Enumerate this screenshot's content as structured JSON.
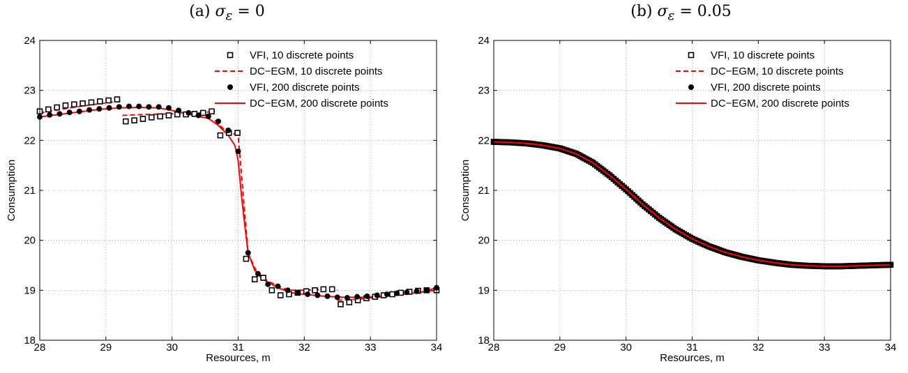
{
  "chart_data": [
    {
      "type": "line",
      "title": "(a) σ_ε = 0",
      "title_parts": {
        "label": "(a)",
        "symbol": "σ",
        "subscript": "ε",
        "rest": " = 0"
      },
      "xlabel": "Resources, m",
      "ylabel": "Consumption",
      "xlim": [
        28,
        34
      ],
      "ylim": [
        18,
        24
      ],
      "xticks": [
        "28",
        "29",
        "30",
        "31",
        "32",
        "33",
        "34"
      ],
      "yticks": [
        "18",
        "19",
        "20",
        "21",
        "22",
        "23",
        "24"
      ],
      "grid": true,
      "legend_position": "top-right",
      "series": [
        {
          "name": "VFI, 10 discrete points",
          "style": "square-marker",
          "color": "#000000",
          "x": [
            28.0,
            28.13,
            28.26,
            28.39,
            28.52,
            28.65,
            28.78,
            28.91,
            29.04,
            29.17,
            29.3,
            29.43,
            29.56,
            29.69,
            29.82,
            29.95,
            30.08,
            30.21,
            30.34,
            30.47,
            30.6,
            30.73,
            30.86,
            30.99,
            31.12,
            31.25,
            31.38,
            31.51,
            31.64,
            31.77,
            31.9,
            32.03,
            32.16,
            32.29,
            32.42,
            32.55,
            32.68,
            32.81,
            32.94,
            33.07,
            33.2,
            33.33,
            33.46,
            33.59,
            33.72,
            33.85,
            34.0
          ],
          "y": [
            22.58,
            22.62,
            22.66,
            22.7,
            22.72,
            22.74,
            22.76,
            22.78,
            22.8,
            22.82,
            22.38,
            22.4,
            22.43,
            22.46,
            22.48,
            22.5,
            22.52,
            22.52,
            22.53,
            22.55,
            22.58,
            22.1,
            22.15,
            22.15,
            19.63,
            19.22,
            19.25,
            19.0,
            18.9,
            18.92,
            18.95,
            18.98,
            19.0,
            19.02,
            19.02,
            18.72,
            18.76,
            18.8,
            18.84,
            18.87,
            18.9,
            18.92,
            18.95,
            18.97,
            18.99,
            19.0,
            19.0
          ]
        },
        {
          "name": "DC−EGM, 10 discrete points",
          "style": "dashed-line",
          "color": "#ff0000",
          "segments": [
            {
              "x": [
                28.0,
                28.5,
                29.0,
                29.25
              ],
              "y": [
                22.55,
                22.66,
                22.75,
                22.8
              ]
            },
            {
              "x": [
                29.25,
                29.6,
                30.0,
                30.4,
                30.65
              ],
              "y": [
                22.5,
                22.52,
                22.53,
                22.55,
                22.58
              ]
            },
            {
              "x": [
                30.65,
                30.8,
                31.0,
                31.15,
                31.3,
                31.5,
                31.75,
                32.0,
                32.3,
                32.5
              ],
              "y": [
                22.4,
                22.2,
                22.1,
                19.75,
                19.3,
                19.15,
                19.0,
                19.0,
                19.02,
                19.0
              ]
            },
            {
              "x": [
                32.5,
                32.8,
                33.1,
                33.4,
                33.7,
                34.0
              ],
              "y": [
                18.8,
                18.82,
                18.86,
                18.9,
                18.95,
                19.0
              ]
            }
          ]
        },
        {
          "name": "VFI, 200 discrete points",
          "style": "dot-marker",
          "color": "#000000",
          "x": [
            28.0,
            28.15,
            28.3,
            28.45,
            28.6,
            28.75,
            28.9,
            29.05,
            29.2,
            29.35,
            29.5,
            29.65,
            29.8,
            29.95,
            30.1,
            30.25,
            30.4,
            30.55,
            30.7,
            30.85,
            31.0,
            31.15,
            31.3,
            31.45,
            31.6,
            31.75,
            31.9,
            32.05,
            32.2,
            32.35,
            32.5,
            32.65,
            32.8,
            32.95,
            33.1,
            33.25,
            33.4,
            33.55,
            33.7,
            33.85,
            34.0
          ],
          "y": [
            22.47,
            22.51,
            22.53,
            22.56,
            22.58,
            22.61,
            22.63,
            22.65,
            22.67,
            22.68,
            22.68,
            22.67,
            22.67,
            22.65,
            22.6,
            22.55,
            22.5,
            22.48,
            22.38,
            22.2,
            21.78,
            19.75,
            19.33,
            19.12,
            19.08,
            19.0,
            18.95,
            18.92,
            18.9,
            18.88,
            18.86,
            18.85,
            18.87,
            18.88,
            18.9,
            18.92,
            18.94,
            18.96,
            18.98,
            19.0,
            19.05
          ]
        },
        {
          "name": "DC−EGM, 200 discrete points",
          "style": "solid-line",
          "color": "#ff0000",
          "x": [
            28.0,
            28.3,
            28.6,
            28.9,
            29.2,
            29.5,
            29.8,
            30.0,
            30.2,
            30.4,
            30.55,
            30.7,
            30.85,
            30.95,
            31.0,
            31.05,
            31.1,
            31.15,
            31.25,
            31.4,
            31.6,
            31.8,
            32.0,
            32.3,
            32.6,
            32.9,
            33.2,
            33.5,
            33.8,
            34.0
          ],
          "y": [
            22.47,
            22.52,
            22.57,
            22.62,
            22.65,
            22.66,
            22.65,
            22.6,
            22.54,
            22.48,
            22.44,
            22.3,
            22.1,
            21.9,
            21.6,
            20.9,
            20.3,
            19.75,
            19.4,
            19.2,
            19.05,
            18.95,
            18.92,
            18.88,
            18.86,
            18.86,
            18.88,
            18.92,
            18.97,
            19.05
          ]
        }
      ]
    },
    {
      "type": "line",
      "title": "(b) σ_ε = 0.05",
      "title_parts": {
        "label": "(b)",
        "symbol": "σ",
        "subscript": "ε",
        "rest": " = 0.05"
      },
      "xlabel": "Resources, m",
      "ylabel": "Consumption",
      "xlim": [
        28,
        34
      ],
      "ylim": [
        18,
        24
      ],
      "xticks": [
        "28",
        "29",
        "30",
        "31",
        "32",
        "33",
        "34"
      ],
      "yticks": [
        "18",
        "19",
        "20",
        "21",
        "22",
        "23",
        "24"
      ],
      "grid": true,
      "legend_position": "top-right",
      "curve": {
        "x": [
          28.0,
          28.25,
          28.5,
          28.75,
          29.0,
          29.25,
          29.5,
          29.75,
          30.0,
          30.25,
          30.5,
          30.75,
          31.0,
          31.25,
          31.5,
          31.75,
          32.0,
          32.25,
          32.5,
          32.75,
          33.0,
          33.25,
          33.5,
          33.75,
          34.0
        ],
        "y": [
          21.97,
          21.96,
          21.94,
          21.9,
          21.84,
          21.73,
          21.55,
          21.3,
          21.02,
          20.72,
          20.45,
          20.22,
          20.03,
          19.88,
          19.76,
          19.67,
          19.6,
          19.55,
          19.51,
          19.49,
          19.48,
          19.48,
          19.49,
          19.5,
          19.51
        ]
      },
      "series": [
        {
          "name": "VFI, 10 discrete points",
          "style": "square-marker",
          "color": "#000000"
        },
        {
          "name": "DC−EGM, 10 discrete points",
          "style": "dashed-line",
          "color": "#ff0000"
        },
        {
          "name": "VFI, 200 discrete points",
          "style": "dot-marker",
          "color": "#000000"
        },
        {
          "name": "DC−EGM, 200 discrete points",
          "style": "solid-line",
          "color": "#ff0000"
        }
      ]
    }
  ]
}
